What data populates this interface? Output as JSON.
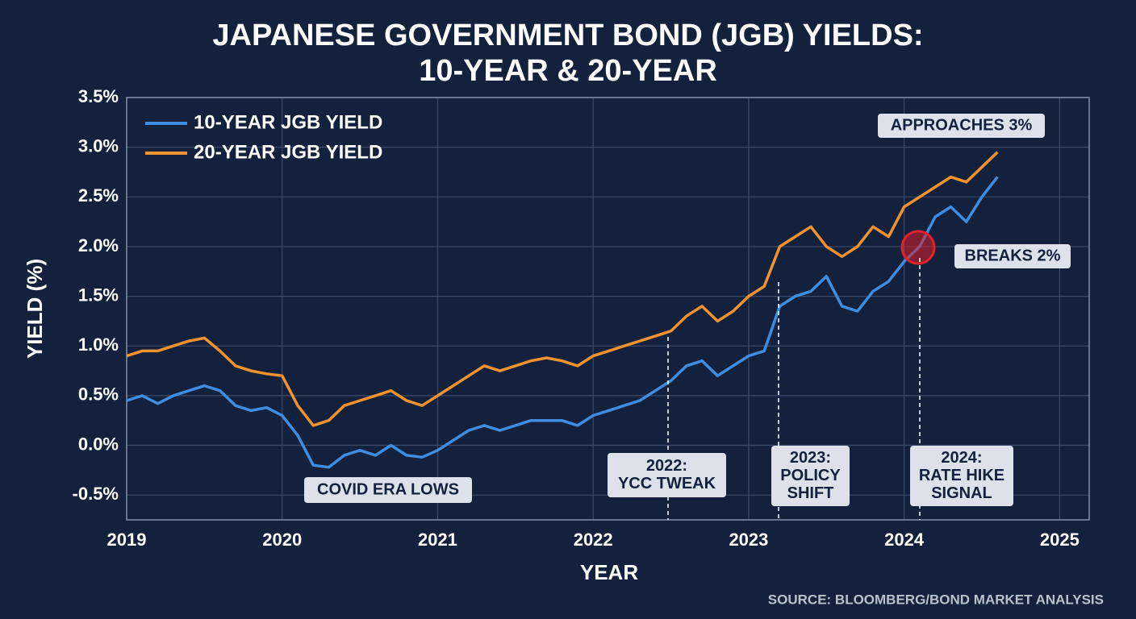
{
  "chart_data": {
    "type": "line",
    "title": [
      "JAPANESE GOVERNMENT BOND (JGB) YIELDS:",
      "10-YEAR & 20-YEAR"
    ],
    "x_label": "YEAR",
    "y_label": "YIELD (%)",
    "source": "SOURCE: BLOOMBERG/BOND MARKET ANALYSIS",
    "x": [
      2019.0,
      2019.1,
      2019.2,
      2019.3,
      2019.4,
      2019.5,
      2019.6,
      2019.7,
      2019.8,
      2019.9,
      2020.0,
      2020.1,
      2020.2,
      2020.3,
      2020.4,
      2020.5,
      2020.6,
      2020.7,
      2020.8,
      2020.9,
      2021.0,
      2021.1,
      2021.2,
      2021.3,
      2021.4,
      2021.5,
      2021.6,
      2021.7,
      2021.8,
      2021.9,
      2022.0,
      2022.1,
      2022.2,
      2022.3,
      2022.4,
      2022.5,
      2022.6,
      2022.7,
      2022.8,
      2022.9,
      2023.0,
      2023.1,
      2023.2,
      2023.3,
      2023.4,
      2023.5,
      2023.6,
      2023.7,
      2023.8,
      2023.9,
      2024.0,
      2024.1,
      2024.2,
      2024.3,
      2024.4,
      2024.5,
      2024.6
    ],
    "series": [
      {
        "name": "10-YEAR JGB YIELD",
        "color": "#3f8de0",
        "values": [
          0.45,
          0.5,
          0.42,
          0.5,
          0.55,
          0.6,
          0.55,
          0.4,
          0.35,
          0.38,
          0.3,
          0.1,
          -0.2,
          -0.22,
          -0.1,
          -0.05,
          -0.1,
          0.0,
          -0.1,
          -0.12,
          -0.05,
          0.05,
          0.15,
          0.2,
          0.15,
          0.2,
          0.25,
          0.25,
          0.25,
          0.2,
          0.3,
          0.35,
          0.4,
          0.45,
          0.55,
          0.65,
          0.8,
          0.85,
          0.7,
          0.8,
          0.9,
          0.95,
          1.4,
          1.5,
          1.55,
          1.7,
          1.4,
          1.35,
          1.55,
          1.65,
          1.85,
          2.0,
          2.3,
          2.4,
          2.25,
          2.5,
          2.7
        ]
      },
      {
        "name": "20-YEAR JGB YIELD",
        "color": "#f0922e",
        "values": [
          0.9,
          0.95,
          0.95,
          1.0,
          1.05,
          1.08,
          0.95,
          0.8,
          0.75,
          0.72,
          0.7,
          0.4,
          0.2,
          0.25,
          0.4,
          0.45,
          0.5,
          0.55,
          0.45,
          0.4,
          0.5,
          0.6,
          0.7,
          0.8,
          0.75,
          0.8,
          0.85,
          0.88,
          0.85,
          0.8,
          0.9,
          0.95,
          1.0,
          1.05,
          1.1,
          1.15,
          1.3,
          1.4,
          1.25,
          1.35,
          1.5,
          1.6,
          2.0,
          2.1,
          2.2,
          2.0,
          1.9,
          2.0,
          2.2,
          2.1,
          2.4,
          2.5,
          2.6,
          2.7,
          2.65,
          2.8,
          2.95
        ]
      }
    ],
    "xlim": [
      2019,
      2025.19
    ],
    "xticks": [
      2019,
      2020,
      2021,
      2022,
      2023,
      2024,
      2025
    ],
    "ylim": [
      -0.75,
      3.5
    ],
    "yticks": [
      {
        "value": -0.5,
        "label": "-0.5%"
      },
      {
        "value": 0,
        "label": "0.0%"
      },
      {
        "value": 0.5,
        "label": "0.5%"
      },
      {
        "value": 1,
        "label": "1.0%"
      },
      {
        "value": 1.5,
        "label": "1.5%"
      },
      {
        "value": 2,
        "label": "2.0%"
      },
      {
        "value": 2.5,
        "label": "2.5%"
      },
      {
        "value": 3,
        "label": "3.0%"
      },
      {
        "value": 3.5,
        "label": "3.5%"
      }
    ],
    "grid": true,
    "legend": "upper left",
    "annotations": [
      [
        "COVID ERA LOWS"
      ],
      [
        "2022:",
        "YCC TWEAK"
      ],
      [
        "2023:",
        "POLICY",
        "SHIFT"
      ],
      [
        "2024:",
        "RATE HIKE",
        "SIGNAL"
      ],
      [
        "APPROACHES 3%"
      ],
      [
        "BREAKS 2%"
      ]
    ]
  }
}
